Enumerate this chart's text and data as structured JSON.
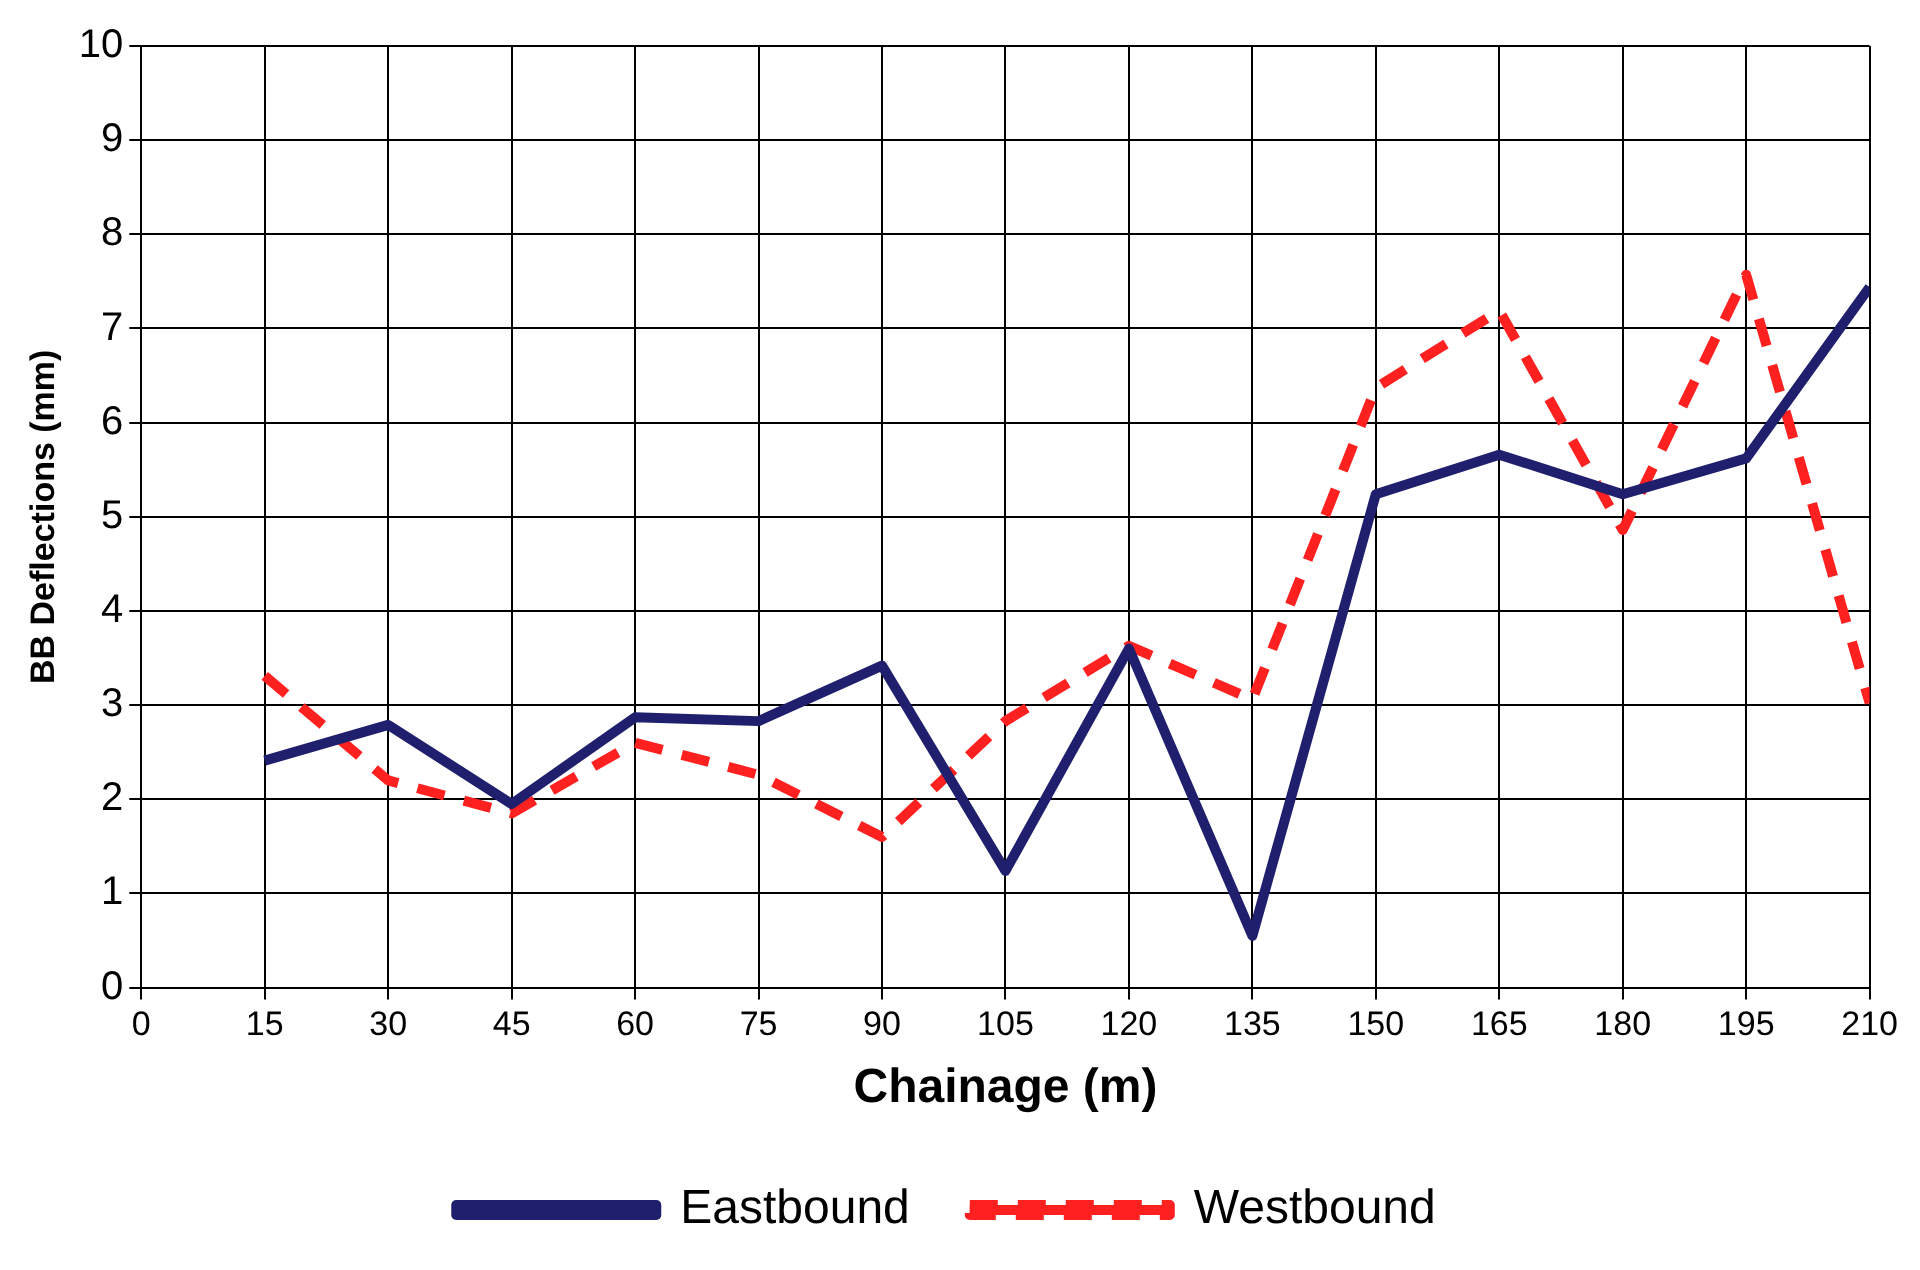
{
  "chart_data": {
    "type": "line",
    "xlabel": "Chainage (m)",
    "ylabel": "BB Deflections (mm)",
    "x": [
      15,
      30,
      45,
      60,
      75,
      90,
      105,
      120,
      135,
      150,
      165,
      180,
      195,
      210
    ],
    "series": [
      {
        "name": "Eastbound",
        "color": "#1f1f6e",
        "line_style": "solid",
        "values": [
          2.41,
          2.79,
          1.95,
          2.87,
          2.83,
          3.42,
          1.24,
          3.6,
          0.55,
          5.24,
          5.66,
          5.24,
          5.62,
          7.44
        ]
      },
      {
        "name": "Westbound",
        "color": "#ff2020",
        "line_style": "dashed",
        "values": [
          3.31,
          2.2,
          1.85,
          2.6,
          2.26,
          1.6,
          2.83,
          3.63,
          3.06,
          6.37,
          7.19,
          4.86,
          7.57,
          3.02
        ]
      }
    ],
    "xlim": [
      0,
      210
    ],
    "xticks": [
      0,
      15,
      30,
      45,
      60,
      75,
      90,
      105,
      120,
      135,
      150,
      165,
      180,
      195,
      210
    ],
    "ylim": [
      0,
      10
    ],
    "yticks": [
      0,
      1,
      2,
      3,
      4,
      5,
      6,
      7,
      8,
      9,
      10
    ],
    "grid": true,
    "legend": "bottom",
    "marker": "none"
  }
}
